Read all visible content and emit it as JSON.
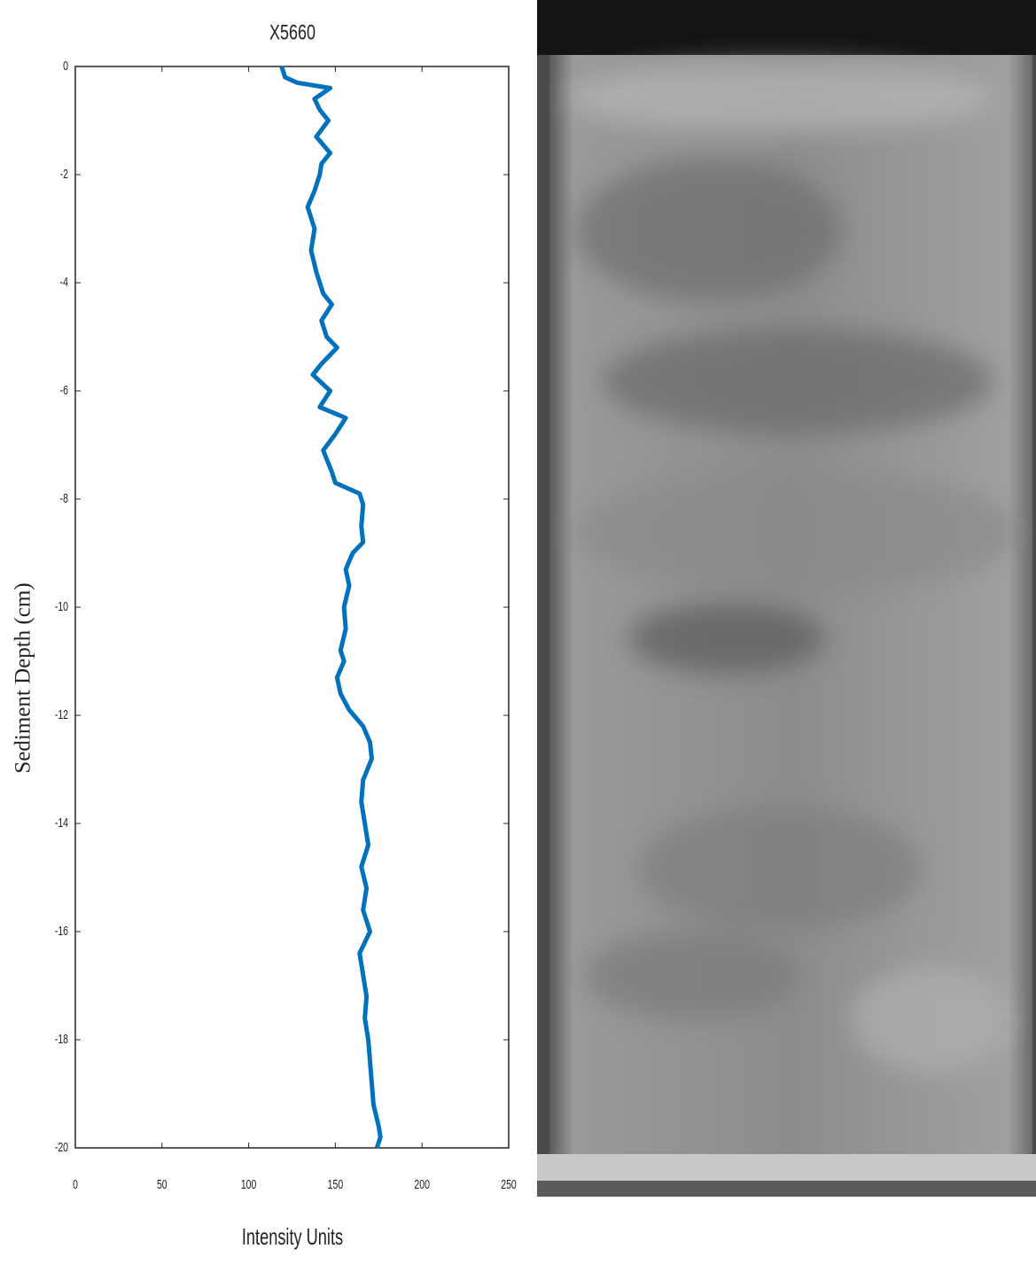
{
  "chart_data": {
    "type": "line",
    "title": "X5660",
    "xlabel": "Intensity Units",
    "ylabel": "Sediment Depth (cm)",
    "xlim": [
      0,
      250
    ],
    "ylim": [
      -20,
      0
    ],
    "xticks": [
      0,
      50,
      100,
      150,
      200,
      250
    ],
    "yticks": [
      0,
      -2,
      -4,
      -6,
      -8,
      -10,
      -12,
      -14,
      -16,
      -18,
      -20
    ],
    "series": [
      {
        "color": "#0072bd",
        "x": [
          119,
          121,
          128,
          147,
          138,
          141,
          146,
          139,
          147,
          142,
          141,
          138,
          134,
          138,
          136,
          139,
          143,
          148,
          142,
          145,
          151,
          142,
          137,
          147,
          141,
          156,
          150,
          143,
          148,
          150,
          164,
          166,
          165,
          166,
          160,
          156,
          158,
          155,
          156,
          153,
          155,
          151,
          153,
          158,
          166,
          170,
          171,
          166,
          165,
          167,
          169,
          165,
          168,
          166,
          170,
          164,
          166,
          168,
          167,
          169,
          170,
          171,
          172,
          175,
          176,
          174
        ],
        "values": [
          0,
          -0.2,
          -0.3,
          -0.4,
          -0.6,
          -0.8,
          -1.0,
          -1.3,
          -1.6,
          -1.8,
          -2.0,
          -2.3,
          -2.6,
          -3.0,
          -3.4,
          -3.8,
          -4.2,
          -4.4,
          -4.7,
          -5.0,
          -5.2,
          -5.5,
          -5.7,
          -6.0,
          -6.3,
          -6.5,
          -6.8,
          -7.1,
          -7.5,
          -7.7,
          -7.9,
          -8.1,
          -8.5,
          -8.8,
          -9.0,
          -9.3,
          -9.6,
          -10.0,
          -10.4,
          -10.8,
          -11.0,
          -11.3,
          -11.6,
          -11.9,
          -12.2,
          -12.5,
          -12.8,
          -13.2,
          -13.6,
          -14.0,
          -14.4,
          -14.8,
          -15.2,
          -15.6,
          -16.0,
          -16.4,
          -16.8,
          -17.2,
          -17.6,
          -18.0,
          -18.4,
          -18.8,
          -19.2,
          -19.6,
          -19.8,
          -20.0
        ]
      }
    ]
  }
}
